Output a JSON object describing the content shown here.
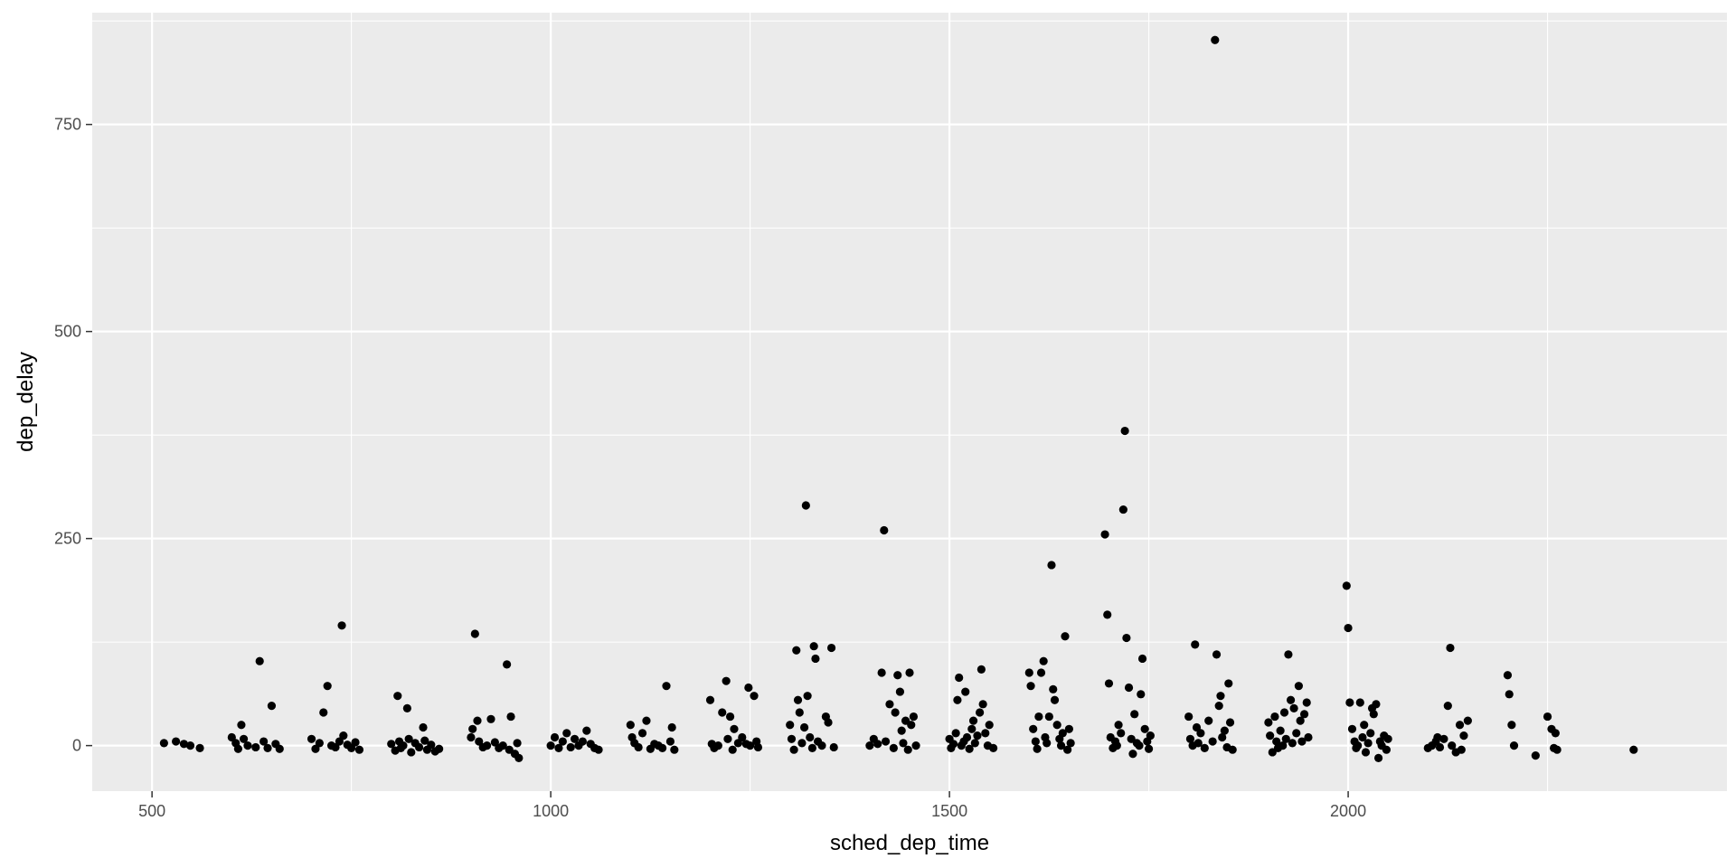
{
  "chart_data": {
    "type": "scatter",
    "title": "",
    "xlabel": "sched_dep_time",
    "ylabel": "dep_delay",
    "xlim": [
      425,
      2475
    ],
    "ylim": [
      -55,
      885
    ],
    "x_ticks": [
      500,
      1000,
      1500,
      2000
    ],
    "y_ticks": [
      0,
      250,
      500,
      750
    ],
    "x_tick_labels": [
      "500",
      "1000",
      "1500",
      "2000"
    ],
    "y_tick_labels": [
      "0",
      "250",
      "500",
      "750"
    ],
    "grid": true,
    "legend": "none",
    "panel_color": "#ebebeb",
    "grid_color": "#ffffff",
    "point_color": "#000000",
    "points": [
      [
        515,
        3
      ],
      [
        530,
        5
      ],
      [
        540,
        2
      ],
      [
        548,
        0
      ],
      [
        560,
        -3
      ],
      [
        600,
        10
      ],
      [
        605,
        3
      ],
      [
        608,
        -4
      ],
      [
        612,
        25
      ],
      [
        615,
        8
      ],
      [
        620,
        0
      ],
      [
        630,
        -2
      ],
      [
        635,
        102
      ],
      [
        640,
        5
      ],
      [
        645,
        -3
      ],
      [
        650,
        48
      ],
      [
        655,
        2
      ],
      [
        660,
        -4
      ],
      [
        700,
        8
      ],
      [
        705,
        -4
      ],
      [
        710,
        3
      ],
      [
        715,
        40
      ],
      [
        720,
        72
      ],
      [
        725,
        0
      ],
      [
        730,
        -2
      ],
      [
        735,
        5
      ],
      [
        738,
        145
      ],
      [
        740,
        12
      ],
      [
        745,
        1
      ],
      [
        750,
        -3
      ],
      [
        755,
        4
      ],
      [
        760,
        -5
      ],
      [
        800,
        2
      ],
      [
        805,
        -6
      ],
      [
        808,
        60
      ],
      [
        810,
        5
      ],
      [
        812,
        -3
      ],
      [
        815,
        0
      ],
      [
        820,
        45
      ],
      [
        822,
        8
      ],
      [
        825,
        -8
      ],
      [
        830,
        3
      ],
      [
        835,
        -2
      ],
      [
        840,
        22
      ],
      [
        842,
        6
      ],
      [
        845,
        -5
      ],
      [
        850,
        1
      ],
      [
        855,
        -7
      ],
      [
        860,
        -4
      ],
      [
        900,
        10
      ],
      [
        902,
        20
      ],
      [
        905,
        135
      ],
      [
        908,
        30
      ],
      [
        910,
        5
      ],
      [
        915,
        -2
      ],
      [
        920,
        0
      ],
      [
        925,
        32
      ],
      [
        930,
        4
      ],
      [
        935,
        -3
      ],
      [
        940,
        0
      ],
      [
        945,
        98
      ],
      [
        948,
        -5
      ],
      [
        950,
        35
      ],
      [
        955,
        -10
      ],
      [
        958,
        3
      ],
      [
        960,
        -15
      ],
      [
        1000,
        0
      ],
      [
        1005,
        10
      ],
      [
        1010,
        -3
      ],
      [
        1015,
        5
      ],
      [
        1020,
        15
      ],
      [
        1025,
        -2
      ],
      [
        1030,
        8
      ],
      [
        1035,
        0
      ],
      [
        1040,
        5
      ],
      [
        1045,
        18
      ],
      [
        1050,
        2
      ],
      [
        1055,
        -3
      ],
      [
        1060,
        -5
      ],
      [
        1100,
        25
      ],
      [
        1102,
        10
      ],
      [
        1105,
        3
      ],
      [
        1110,
        -2
      ],
      [
        1115,
        15
      ],
      [
        1120,
        30
      ],
      [
        1125,
        -4
      ],
      [
        1130,
        2
      ],
      [
        1135,
        0
      ],
      [
        1140,
        -3
      ],
      [
        1145,
        72
      ],
      [
        1150,
        5
      ],
      [
        1152,
        22
      ],
      [
        1155,
        -5
      ],
      [
        1200,
        55
      ],
      [
        1202,
        2
      ],
      [
        1205,
        -3
      ],
      [
        1210,
        0
      ],
      [
        1215,
        40
      ],
      [
        1220,
        78
      ],
      [
        1222,
        8
      ],
      [
        1225,
        35
      ],
      [
        1228,
        -5
      ],
      [
        1230,
        20
      ],
      [
        1235,
        3
      ],
      [
        1240,
        10
      ],
      [
        1245,
        2
      ],
      [
        1248,
        70
      ],
      [
        1250,
        0
      ],
      [
        1255,
        60
      ],
      [
        1258,
        5
      ],
      [
        1260,
        -2
      ],
      [
        1300,
        25
      ],
      [
        1302,
        8
      ],
      [
        1305,
        -5
      ],
      [
        1308,
        115
      ],
      [
        1310,
        55
      ],
      [
        1312,
        40
      ],
      [
        1315,
        3
      ],
      [
        1318,
        22
      ],
      [
        1320,
        290
      ],
      [
        1322,
        60
      ],
      [
        1325,
        10
      ],
      [
        1328,
        -3
      ],
      [
        1330,
        120
      ],
      [
        1332,
        105
      ],
      [
        1335,
        5
      ],
      [
        1340,
        0
      ],
      [
        1345,
        35
      ],
      [
        1348,
        28
      ],
      [
        1352,
        118
      ],
      [
        1355,
        -2
      ],
      [
        1400,
        0
      ],
      [
        1405,
        8
      ],
      [
        1410,
        2
      ],
      [
        1415,
        88
      ],
      [
        1418,
        260
      ],
      [
        1420,
        5
      ],
      [
        1425,
        50
      ],
      [
        1430,
        -3
      ],
      [
        1432,
        40
      ],
      [
        1435,
        85
      ],
      [
        1438,
        65
      ],
      [
        1440,
        18
      ],
      [
        1442,
        3
      ],
      [
        1445,
        30
      ],
      [
        1448,
        -5
      ],
      [
        1450,
        88
      ],
      [
        1452,
        25
      ],
      [
        1455,
        35
      ],
      [
        1458,
        0
      ],
      [
        1500,
        8
      ],
      [
        1502,
        -3
      ],
      [
        1505,
        2
      ],
      [
        1508,
        15
      ],
      [
        1510,
        55
      ],
      [
        1512,
        82
      ],
      [
        1515,
        0
      ],
      [
        1518,
        5
      ],
      [
        1520,
        65
      ],
      [
        1522,
        10
      ],
      [
        1525,
        -4
      ],
      [
        1528,
        20
      ],
      [
        1530,
        30
      ],
      [
        1532,
        3
      ],
      [
        1535,
        12
      ],
      [
        1538,
        40
      ],
      [
        1540,
        92
      ],
      [
        1542,
        50
      ],
      [
        1545,
        15
      ],
      [
        1548,
        0
      ],
      [
        1550,
        25
      ],
      [
        1555,
        -3
      ],
      [
        1600,
        88
      ],
      [
        1602,
        72
      ],
      [
        1605,
        20
      ],
      [
        1608,
        5
      ],
      [
        1610,
        -4
      ],
      [
        1612,
        35
      ],
      [
        1615,
        88
      ],
      [
        1618,
        102
      ],
      [
        1620,
        10
      ],
      [
        1622,
        3
      ],
      [
        1625,
        35
      ],
      [
        1628,
        218
      ],
      [
        1630,
        68
      ],
      [
        1632,
        55
      ],
      [
        1635,
        25
      ],
      [
        1638,
        8
      ],
      [
        1640,
        0
      ],
      [
        1642,
        15
      ],
      [
        1645,
        132
      ],
      [
        1648,
        -5
      ],
      [
        1650,
        20
      ],
      [
        1652,
        3
      ],
      [
        1695,
        255
      ],
      [
        1698,
        158
      ],
      [
        1700,
        75
      ],
      [
        1702,
        10
      ],
      [
        1705,
        -3
      ],
      [
        1708,
        5
      ],
      [
        1710,
        0
      ],
      [
        1712,
        25
      ],
      [
        1715,
        15
      ],
      [
        1718,
        285
      ],
      [
        1720,
        380
      ],
      [
        1722,
        130
      ],
      [
        1725,
        70
      ],
      [
        1728,
        8
      ],
      [
        1730,
        -10
      ],
      [
        1732,
        38
      ],
      [
        1735,
        3
      ],
      [
        1738,
        0
      ],
      [
        1740,
        62
      ],
      [
        1742,
        105
      ],
      [
        1745,
        20
      ],
      [
        1748,
        5
      ],
      [
        1750,
        -4
      ],
      [
        1752,
        12
      ],
      [
        1800,
        35
      ],
      [
        1802,
        8
      ],
      [
        1805,
        0
      ],
      [
        1808,
        122
      ],
      [
        1810,
        22
      ],
      [
        1812,
        3
      ],
      [
        1815,
        15
      ],
      [
        1820,
        -3
      ],
      [
        1825,
        30
      ],
      [
        1830,
        5
      ],
      [
        1833,
        852
      ],
      [
        1835,
        110
      ],
      [
        1838,
        48
      ],
      [
        1840,
        60
      ],
      [
        1842,
        10
      ],
      [
        1845,
        18
      ],
      [
        1848,
        -2
      ],
      [
        1850,
        75
      ],
      [
        1852,
        28
      ],
      [
        1855,
        -5
      ],
      [
        1900,
        28
      ],
      [
        1902,
        12
      ],
      [
        1905,
        -8
      ],
      [
        1908,
        35
      ],
      [
        1910,
        5
      ],
      [
        1912,
        -3
      ],
      [
        1915,
        18
      ],
      [
        1918,
        0
      ],
      [
        1920,
        40
      ],
      [
        1922,
        8
      ],
      [
        1925,
        110
      ],
      [
        1928,
        55
      ],
      [
        1930,
        3
      ],
      [
        1932,
        45
      ],
      [
        1935,
        15
      ],
      [
        1938,
        72
      ],
      [
        1940,
        30
      ],
      [
        1942,
        5
      ],
      [
        1945,
        38
      ],
      [
        1948,
        52
      ],
      [
        1950,
        10
      ],
      [
        1998,
        193
      ],
      [
        2000,
        142
      ],
      [
        2002,
        52
      ],
      [
        2005,
        20
      ],
      [
        2008,
        5
      ],
      [
        2010,
        -3
      ],
      [
        2012,
        0
      ],
      [
        2015,
        52
      ],
      [
        2018,
        10
      ],
      [
        2020,
        25
      ],
      [
        2022,
        -8
      ],
      [
        2025,
        3
      ],
      [
        2028,
        15
      ],
      [
        2030,
        45
      ],
      [
        2032,
        38
      ],
      [
        2035,
        50
      ],
      [
        2038,
        -15
      ],
      [
        2040,
        5
      ],
      [
        2042,
        0
      ],
      [
        2045,
        12
      ],
      [
        2048,
        -5
      ],
      [
        2050,
        8
      ],
      [
        2100,
        -3
      ],
      [
        2105,
        0
      ],
      [
        2110,
        5
      ],
      [
        2112,
        10
      ],
      [
        2115,
        -2
      ],
      [
        2120,
        8
      ],
      [
        2125,
        48
      ],
      [
        2128,
        118
      ],
      [
        2130,
        0
      ],
      [
        2135,
        -8
      ],
      [
        2140,
        25
      ],
      [
        2142,
        -5
      ],
      [
        2145,
        12
      ],
      [
        2150,
        30
      ],
      [
        2200,
        85
      ],
      [
        2202,
        62
      ],
      [
        2205,
        25
      ],
      [
        2208,
        0
      ],
      [
        2235,
        -12
      ],
      [
        2250,
        35
      ],
      [
        2255,
        20
      ],
      [
        2258,
        -3
      ],
      [
        2260,
        15
      ],
      [
        2262,
        -5
      ],
      [
        2358,
        -5
      ]
    ]
  }
}
